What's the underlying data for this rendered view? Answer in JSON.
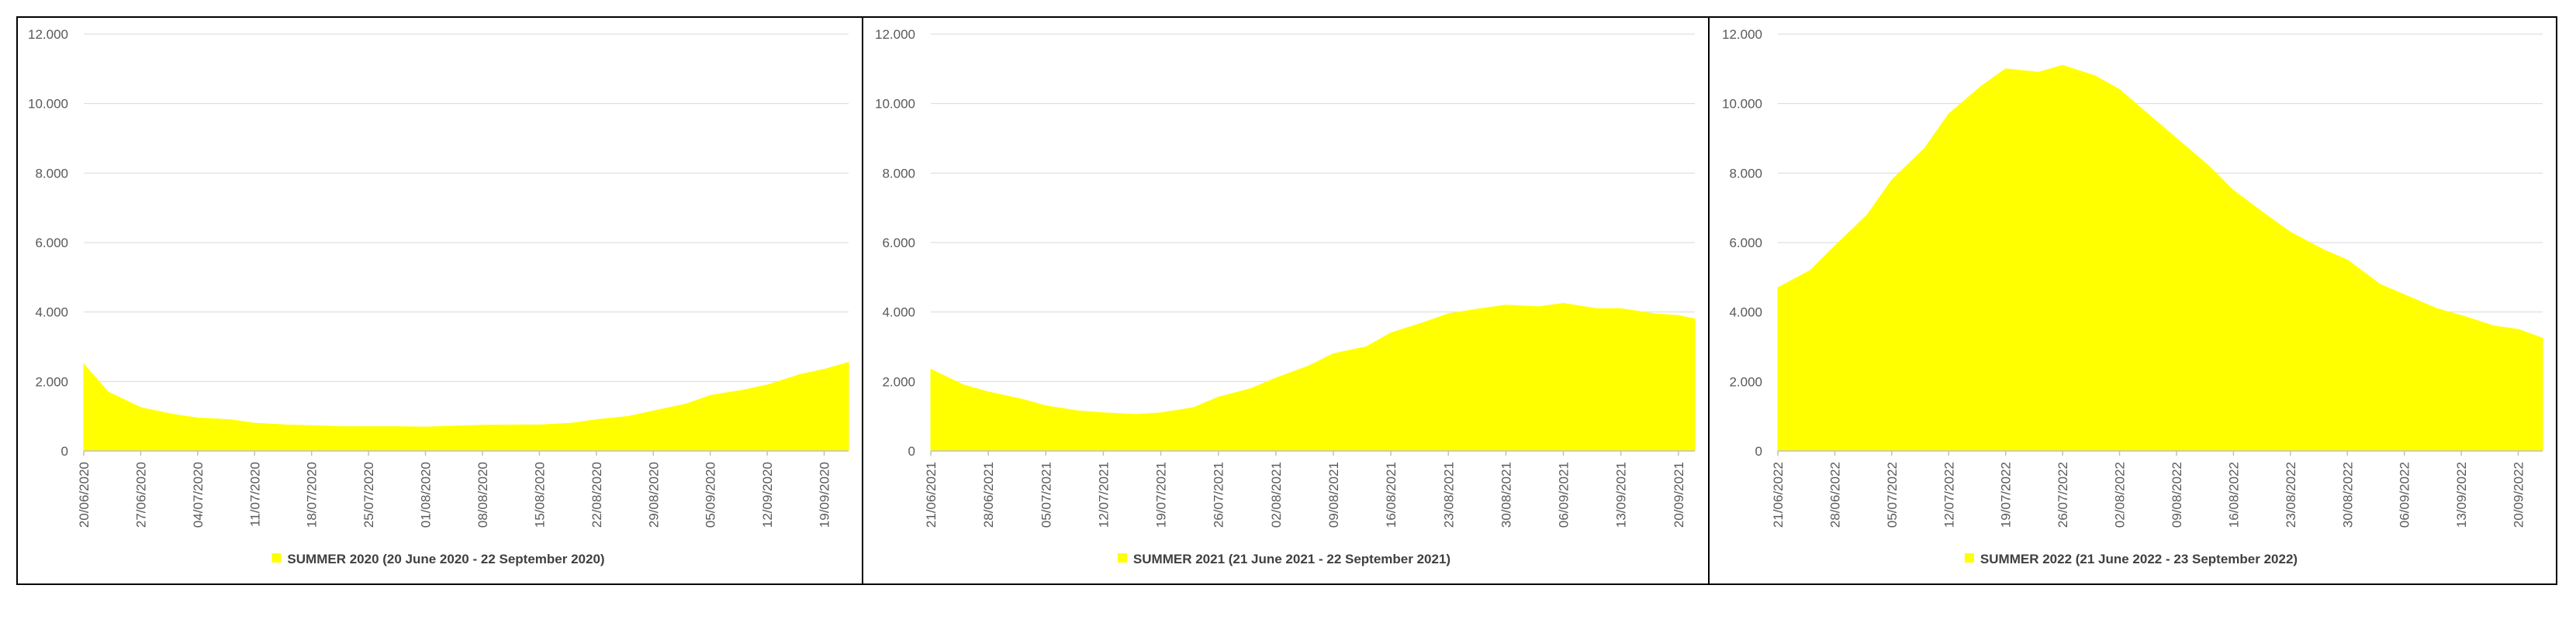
{
  "chart_data": [
    {
      "type": "area",
      "color": "#ffff00",
      "legend_position": "bottom",
      "grid": true,
      "ylim": [
        0,
        12000
      ],
      "yticks": [
        "0",
        "2.000",
        "4.000",
        "6.000",
        "8.000",
        "10.000",
        "12.000"
      ],
      "x_tick_labels": [
        "20/06/2020",
        "27/06/2020",
        "04/07/2020",
        "11/07/2020",
        "18/07/2020",
        "25/07/2020",
        "01/08/2020",
        "08/08/2020",
        "15/08/2020",
        "22/08/2020",
        "29/08/2020",
        "05/09/2020",
        "12/09/2020",
        "19/09/2020"
      ],
      "series": [
        {
          "name": "SUMMER 2020 (20 June 2020 - 22 September 2020)",
          "x": [
            "20/06/2020",
            "23/06/2020",
            "27/06/2020",
            "01/07/2020",
            "04/07/2020",
            "08/07/2020",
            "11/07/2020",
            "15/07/2020",
            "18/07/2020",
            "22/07/2020",
            "25/07/2020",
            "29/07/2020",
            "01/08/2020",
            "05/08/2020",
            "08/08/2020",
            "12/08/2020",
            "15/08/2020",
            "19/08/2020",
            "22/08/2020",
            "26/08/2020",
            "29/08/2020",
            "02/09/2020",
            "05/09/2020",
            "09/09/2020",
            "12/09/2020",
            "16/09/2020",
            "19/09/2020",
            "22/09/2020"
          ],
          "values": [
            2500,
            1700,
            1250,
            1050,
            950,
            900,
            800,
            750,
            730,
            700,
            700,
            700,
            690,
            720,
            740,
            750,
            750,
            800,
            900,
            1000,
            1150,
            1350,
            1600,
            1750,
            1900,
            2200,
            2350,
            2550
          ]
        }
      ]
    },
    {
      "type": "area",
      "color": "#ffff00",
      "legend_position": "bottom",
      "grid": true,
      "ylim": [
        0,
        12000
      ],
      "yticks": [
        "0",
        "2.000",
        "4.000",
        "6.000",
        "8.000",
        "10.000",
        "12.000"
      ],
      "x_tick_labels": [
        "21/06/2021",
        "28/06/2021",
        "05/07/2021",
        "12/07/2021",
        "19/07/2021",
        "26/07/2021",
        "02/08/2021",
        "09/08/2021",
        "16/08/2021",
        "23/08/2021",
        "30/08/2021",
        "06/09/2021",
        "13/09/2021",
        "20/09/2021"
      ],
      "series": [
        {
          "name": "SUMMER 2021 (21 June 2021 - 22 September 2021)",
          "x": [
            "21/06/2021",
            "25/06/2021",
            "28/06/2021",
            "02/07/2021",
            "05/07/2021",
            "09/07/2021",
            "12/07/2021",
            "16/07/2021",
            "19/07/2021",
            "23/07/2021",
            "26/07/2021",
            "30/07/2021",
            "02/08/2021",
            "06/08/2021",
            "09/08/2021",
            "13/08/2021",
            "16/08/2021",
            "20/08/2021",
            "23/08/2021",
            "27/08/2021",
            "30/08/2021",
            "03/09/2021",
            "06/09/2021",
            "10/09/2021",
            "13/09/2021",
            "17/09/2021",
            "20/09/2021",
            "22/09/2021"
          ],
          "values": [
            2350,
            1900,
            1700,
            1500,
            1300,
            1150,
            1100,
            1050,
            1100,
            1250,
            1550,
            1800,
            2100,
            2450,
            2800,
            3000,
            3400,
            3700,
            3950,
            4100,
            4200,
            4150,
            4250,
            4100,
            4100,
            3950,
            3900,
            3800
          ]
        }
      ]
    },
    {
      "type": "area",
      "color": "#ffff00",
      "legend_position": "bottom",
      "grid": true,
      "ylim": [
        0,
        12000
      ],
      "yticks": [
        "0",
        "2.000",
        "4.000",
        "6.000",
        "8.000",
        "10.000",
        "12.000"
      ],
      "x_tick_labels": [
        "21/06/2022",
        "28/06/2022",
        "05/07/2022",
        "12/07/2022",
        "19/07/2022",
        "26/07/2022",
        "02/08/2022",
        "09/08/2022",
        "16/08/2022",
        "23/08/2022",
        "30/08/2022",
        "06/09/2022",
        "13/09/2022",
        "20/09/2022"
      ],
      "series": [
        {
          "name": "SUMMER 2022 (21 June 2022 - 23 September 2022)",
          "x": [
            "21/06/2022",
            "25/06/2022",
            "28/06/2022",
            "02/07/2022",
            "05/07/2022",
            "09/07/2022",
            "12/07/2022",
            "16/07/2022",
            "19/07/2022",
            "23/07/2022",
            "26/07/2022",
            "30/07/2022",
            "02/08/2022",
            "06/08/2022",
            "09/08/2022",
            "13/08/2022",
            "16/08/2022",
            "20/08/2022",
            "23/08/2022",
            "27/08/2022",
            "30/08/2022",
            "03/09/2022",
            "06/09/2022",
            "10/09/2022",
            "13/09/2022",
            "17/09/2022",
            "20/09/2022",
            "23/09/2022"
          ],
          "values": [
            4700,
            5200,
            5900,
            6800,
            7800,
            8700,
            9700,
            10500,
            11000,
            10900,
            11100,
            10800,
            10400,
            9600,
            9000,
            8200,
            7500,
            6800,
            6300,
            5800,
            5500,
            4800,
            4500,
            4100,
            3900,
            3600,
            3500,
            3250
          ]
        }
      ]
    }
  ]
}
